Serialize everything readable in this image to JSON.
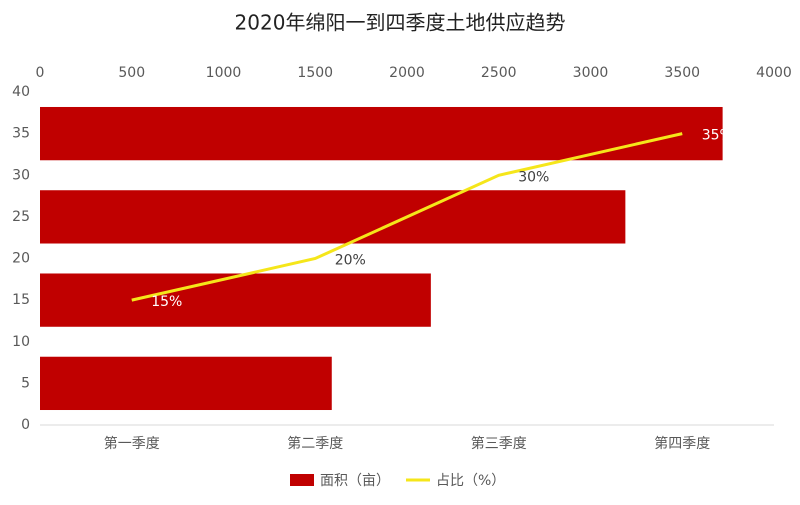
{
  "chart_data": {
    "type": "combo",
    "title": "2020年绵阳一到四季度土地供应趋势",
    "categories": [
      "第一季度",
      "第二季度",
      "第三季度",
      "第四季度"
    ],
    "series": [
      {
        "name": "面积（亩）",
        "type": "barh",
        "color": "#c00000",
        "values": [
          1590,
          2130,
          3190,
          3720
        ]
      },
      {
        "name": "占比（%）",
        "type": "line",
        "color": "#f5e61a",
        "values": [
          15,
          20,
          30,
          35
        ],
        "value_labels": [
          "15%",
          "20%",
          "30%",
          "35%"
        ]
      }
    ],
    "xlim": [
      0,
      4000
    ],
    "xticks": [
      0,
      500,
      1000,
      1500,
      2000,
      2500,
      3000,
      3500,
      4000
    ],
    "ylim": [
      0,
      40
    ],
    "yticks": [
      0,
      5,
      10,
      15,
      20,
      25,
      30,
      35,
      40
    ],
    "legend": "bottom"
  }
}
